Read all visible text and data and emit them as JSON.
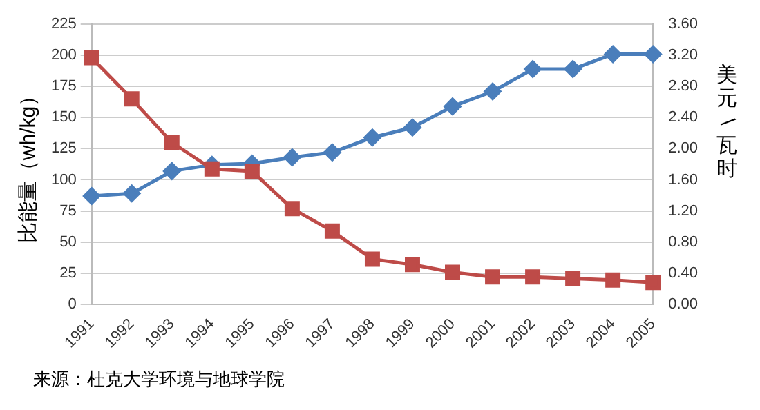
{
  "chart_data": {
    "type": "line",
    "ylabel": "比能量（wh/kg）",
    "y2label": "美元/瓦时",
    "categories": [
      "1991",
      "1992",
      "1993",
      "1994",
      "1995",
      "1996",
      "1997",
      "1998",
      "1999",
      "2000",
      "2001",
      "2002",
      "2003",
      "2004",
      "2005"
    ],
    "series": [
      {
        "color": "#4a7ebb",
        "marker": "diamond",
        "values": [
          87,
          89,
          107,
          112,
          113,
          118,
          122,
          134,
          142,
          159,
          171,
          189,
          189,
          201,
          201
        ]
      },
      {
        "color": "#be4b48",
        "marker": "square",
        "axis": "y2",
        "values": [
          3.17,
          2.64,
          2.08,
          1.74,
          1.71,
          1.23,
          0.94,
          0.58,
          0.51,
          0.41,
          0.35,
          0.35,
          0.33,
          0.31,
          0.28
        ]
      }
    ],
    "ylim": [
      0,
      225
    ],
    "yticks": [
      0,
      25,
      50,
      75,
      100,
      125,
      150,
      175,
      200,
      225
    ],
    "y2lim": [
      0,
      3.6
    ],
    "y2ticks": [
      {
        "value": 0,
        "label": "0.00"
      },
      {
        "value": 0.4,
        "label": "0.40"
      },
      {
        "value": 0.8,
        "label": "0.80"
      },
      {
        "value": 1.2,
        "label": "1.20"
      },
      {
        "value": 1.6,
        "label": "1.60"
      },
      {
        "value": 2,
        "label": "2.00"
      },
      {
        "value": 2.4,
        "label": "2.40"
      },
      {
        "value": 2.8,
        "label": "2.80"
      },
      {
        "value": 3.2,
        "label": "3.20"
      },
      {
        "value": 3.6,
        "label": "3.60"
      }
    ],
    "grid": "y",
    "legend": false,
    "annotations": [
      "来源：杜克大学环境与地球学院"
    ]
  }
}
